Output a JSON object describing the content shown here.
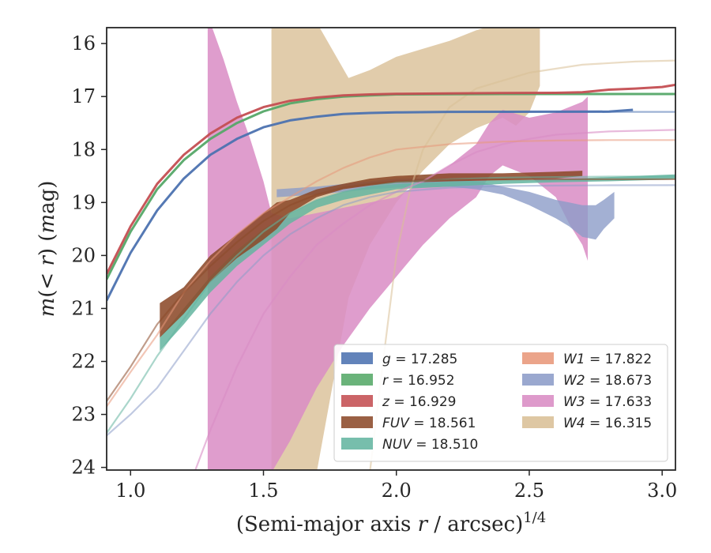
{
  "chart_data": {
    "type": "line",
    "title": "",
    "xlabel": "(Semi-major axis r / arcsec)^1/4",
    "ylabel": "m(< r) (mag)",
    "xlim": [
      0.91,
      3.05
    ],
    "ylim": [
      24.05,
      15.7
    ],
    "y_inverted": true,
    "grid": false,
    "legend_position": "lower-right",
    "x_ticks": [
      "1.0",
      "1.5",
      "2.0",
      "2.5",
      "3.0"
    ],
    "y_ticks": [
      "16",
      "17",
      "18",
      "19",
      "20",
      "21",
      "22",
      "23",
      "24"
    ],
    "legend": [
      {
        "band": "g",
        "value": "17.285",
        "color": "#4c72b0"
      },
      {
        "band": "r",
        "value": "16.952",
        "color": "#55a868"
      },
      {
        "band": "z",
        "value": "16.929",
        "color": "#c44e52"
      },
      {
        "band": "FUV",
        "value": "18.561",
        "color": "#8c4a2a"
      },
      {
        "band": "NUV",
        "value": "18.510",
        "color": "#64b5a0"
      },
      {
        "band": "W1",
        "value": "17.822",
        "color": "#e8977a"
      },
      {
        "band": "W2",
        "value": "18.673",
        "color": "#8c9cc8"
      },
      {
        "band": "W3",
        "value": "17.633",
        "color": "#d98cc4"
      },
      {
        "band": "W4",
        "value": "16.315",
        "color": "#d9bf96"
      }
    ],
    "series": [
      {
        "band": "W4",
        "color": "#d9bf96",
        "fill_opacity": 0.8,
        "band_x": [
          1.53,
          1.6,
          1.7,
          1.82,
          1.9,
          2.0,
          2.1,
          2.2,
          2.3,
          2.4,
          2.45,
          2.5,
          2.54
        ],
        "band_upper": [
          15.6,
          15.6,
          15.6,
          16.65,
          16.5,
          16.25,
          16.1,
          15.95,
          15.75,
          15.6,
          15.6,
          15.6,
          15.6
        ],
        "band_lower": [
          24.1,
          24.1,
          24.1,
          20.8,
          19.8,
          19.0,
          18.4,
          17.9,
          17.6,
          17.4,
          17.55,
          17.3,
          16.8
        ],
        "model_x": [
          1.9,
          1.95,
          2.0,
          2.05,
          2.1,
          2.2,
          2.3,
          2.5,
          2.7,
          2.9,
          3.05
        ],
        "model_y": [
          24.1,
          22.0,
          20.0,
          18.8,
          18.0,
          17.2,
          16.85,
          16.55,
          16.4,
          16.34,
          16.32
        ],
        "model_opacity": 0.55
      },
      {
        "band": "W3",
        "color": "#d98cc4",
        "fill_opacity": 0.85,
        "band_x": [
          1.29,
          1.3,
          1.35,
          1.4,
          1.45,
          1.5,
          1.53,
          1.6,
          1.7,
          1.8,
          1.9,
          2.0,
          2.1,
          2.2,
          2.3,
          2.35,
          2.4,
          2.5,
          2.6,
          2.65,
          2.7,
          2.72
        ],
        "band_upper": [
          15.5,
          15.6,
          16.3,
          17.1,
          17.8,
          18.6,
          19.2,
          19.3,
          19.2,
          19.1,
          19.0,
          18.9,
          18.6,
          18.3,
          17.9,
          17.5,
          17.25,
          17.4,
          17.3,
          17.2,
          17.1,
          17.0
        ],
        "band_lower": [
          24.1,
          24.1,
          24.1,
          24.1,
          24.1,
          24.1,
          24.1,
          23.5,
          22.5,
          21.7,
          21.0,
          20.4,
          19.8,
          19.3,
          18.9,
          18.5,
          18.3,
          18.5,
          18.9,
          19.4,
          19.8,
          20.1
        ],
        "model_x": [
          1.24,
          1.3,
          1.4,
          1.5,
          1.6,
          1.7,
          1.8,
          1.9,
          2.0,
          2.1,
          2.2,
          2.3,
          2.4,
          2.5,
          2.6,
          2.8,
          3.05
        ],
        "model_y": [
          24.1,
          23.3,
          22.1,
          21.1,
          20.4,
          19.8,
          19.4,
          19.05,
          18.8,
          18.6,
          18.3,
          18.05,
          17.9,
          17.8,
          17.72,
          17.66,
          17.63
        ],
        "model_opacity": 0.6
      },
      {
        "band": "W2",
        "color": "#8c9cc8",
        "fill_opacity": 0.8,
        "band_x": [
          1.55,
          1.7,
          1.9,
          2.0,
          2.1,
          2.2,
          2.3,
          2.4,
          2.5,
          2.6,
          2.65,
          2.7,
          2.75,
          2.78,
          2.82
        ],
        "band_upper": [
          18.75,
          18.7,
          18.6,
          18.55,
          18.55,
          18.55,
          18.6,
          18.7,
          18.8,
          18.95,
          19.0,
          19.05,
          19.05,
          18.95,
          18.8
        ],
        "band_lower": [
          18.9,
          18.85,
          18.75,
          18.72,
          18.7,
          18.7,
          18.75,
          18.85,
          19.05,
          19.3,
          19.45,
          19.65,
          19.7,
          19.5,
          19.3
        ],
        "model_x": [
          0.91,
          1.0,
          1.1,
          1.2,
          1.3,
          1.4,
          1.5,
          1.6,
          1.7,
          1.8,
          1.9,
          2.0,
          2.2,
          2.4,
          2.6,
          2.8,
          3.05
        ],
        "model_y": [
          23.4,
          23.0,
          22.5,
          21.8,
          21.1,
          20.5,
          20.0,
          19.6,
          19.3,
          19.05,
          18.9,
          18.8,
          18.72,
          18.69,
          18.68,
          18.675,
          18.673
        ],
        "model_opacity": 0.55
      },
      {
        "band": "W1",
        "color": "#e8977a",
        "fill_opacity": 0.8,
        "band_x": [],
        "band_upper": [],
        "band_lower": [],
        "model_x": [
          0.91,
          1.0,
          1.1,
          1.2,
          1.3,
          1.4,
          1.5,
          1.6,
          1.7,
          1.8,
          1.9,
          2.0,
          2.2,
          2.4,
          2.6,
          2.8,
          3.05
        ],
        "model_y": [
          22.85,
          22.2,
          21.5,
          20.7,
          20.1,
          19.6,
          19.2,
          18.9,
          18.6,
          18.35,
          18.15,
          18.0,
          17.9,
          17.85,
          17.83,
          17.822,
          17.822
        ],
        "model_opacity": 0.55
      },
      {
        "band": "NUV",
        "color": "#64b5a0",
        "fill_opacity": 0.85,
        "band_x": [
          1.11,
          1.2,
          1.3,
          1.4,
          1.5,
          1.6,
          1.7,
          1.8,
          1.9,
          2.0,
          2.2,
          2.4,
          2.6,
          2.8,
          3.0,
          3.05
        ],
        "band_upper": [
          21.55,
          21.0,
          20.4,
          19.9,
          19.5,
          19.2,
          18.95,
          18.8,
          18.7,
          18.65,
          18.6,
          18.58,
          18.56,
          18.52,
          18.48,
          18.47
        ],
        "band_lower": [
          21.8,
          21.3,
          20.7,
          20.2,
          19.8,
          19.4,
          19.1,
          18.95,
          18.85,
          18.75,
          18.7,
          18.65,
          18.62,
          18.6,
          18.57,
          18.56
        ],
        "model_x": [
          0.91,
          1.0,
          1.1,
          1.2,
          1.3,
          1.4,
          1.5,
          1.6,
          1.7,
          1.8,
          1.9,
          2.0,
          2.2,
          2.4,
          2.6,
          2.8,
          3.05
        ],
        "model_y": [
          23.35,
          22.7,
          21.9,
          21.2,
          20.5,
          20.0,
          19.55,
          19.2,
          18.95,
          18.8,
          18.7,
          18.62,
          18.56,
          18.53,
          18.52,
          18.51,
          18.51
        ],
        "model_opacity": 0.55
      },
      {
        "band": "FUV",
        "color": "#8c4a2a",
        "fill_opacity": 0.88,
        "band_x": [
          1.11,
          1.2,
          1.3,
          1.4,
          1.5,
          1.55,
          1.6,
          1.7,
          1.8,
          1.9,
          2.0,
          2.2,
          2.4,
          2.6,
          2.7
        ],
        "band_upper": [
          20.9,
          20.6,
          20.0,
          19.6,
          19.2,
          19.0,
          18.95,
          18.75,
          18.65,
          18.55,
          18.5,
          18.45,
          18.45,
          18.42,
          18.4
        ],
        "band_lower": [
          21.55,
          21.1,
          20.5,
          20.05,
          19.7,
          19.5,
          19.2,
          18.9,
          18.75,
          18.68,
          18.63,
          18.6,
          18.58,
          18.55,
          18.5
        ],
        "model_x": [
          0.91,
          1.0,
          1.1,
          1.2,
          1.3,
          1.4,
          1.5,
          1.6,
          1.7,
          1.8,
          1.9,
          2.0,
          2.2,
          2.4,
          2.6,
          2.8,
          3.05
        ],
        "model_y": [
          22.75,
          22.1,
          21.3,
          20.7,
          20.2,
          19.75,
          19.35,
          19.05,
          18.85,
          18.72,
          18.65,
          18.6,
          18.57,
          18.565,
          18.562,
          18.561,
          18.561
        ],
        "model_opacity": 0.55
      },
      {
        "band": "g",
        "color": "#4c72b0",
        "fill_opacity": 1.0,
        "band_x": [],
        "band_upper": [],
        "band_lower": [],
        "model_x": [
          0.91,
          1.0,
          1.1,
          1.2,
          1.3,
          1.4,
          1.5,
          1.6,
          1.7,
          1.8,
          1.9,
          2.0,
          2.2,
          2.4,
          2.6,
          2.8,
          2.89
        ],
        "model_y": [
          20.85,
          19.95,
          19.15,
          18.55,
          18.1,
          17.8,
          17.58,
          17.45,
          17.38,
          17.33,
          17.31,
          17.3,
          17.29,
          17.288,
          17.286,
          17.285,
          17.25
        ],
        "model_opacity": 0.95,
        "tail_x": [
          2.6,
          2.8,
          3.05
        ],
        "tail_y": [
          17.29,
          17.29,
          17.29
        ]
      },
      {
        "band": "r",
        "color": "#55a868",
        "fill_opacity": 1.0,
        "band_x": [],
        "band_upper": [],
        "band_lower": [],
        "model_x": [
          0.91,
          1.0,
          1.1,
          1.2,
          1.3,
          1.4,
          1.5,
          1.6,
          1.7,
          1.8,
          1.9,
          2.0,
          2.2,
          2.4,
          2.6,
          2.8,
          3.05
        ],
        "model_y": [
          20.45,
          19.55,
          18.75,
          18.2,
          17.8,
          17.5,
          17.28,
          17.13,
          17.05,
          17.0,
          16.98,
          16.96,
          16.955,
          16.953,
          16.952,
          16.952,
          16.952
        ],
        "model_opacity": 0.95
      },
      {
        "band": "z",
        "color": "#c44e52",
        "fill_opacity": 1.0,
        "band_x": [],
        "band_upper": [],
        "band_lower": [],
        "model_x": [
          0.91,
          1.0,
          1.1,
          1.2,
          1.3,
          1.4,
          1.5,
          1.6,
          1.7,
          1.8,
          1.9,
          2.0,
          2.2,
          2.4,
          2.6,
          2.7,
          2.8,
          2.9,
          3.0,
          3.05
        ],
        "model_y": [
          20.35,
          19.45,
          18.65,
          18.1,
          17.7,
          17.4,
          17.2,
          17.08,
          17.02,
          16.98,
          16.96,
          16.95,
          16.94,
          16.935,
          16.93,
          16.92,
          16.87,
          16.85,
          16.82,
          16.78
        ],
        "model_opacity": 0.95
      }
    ]
  }
}
